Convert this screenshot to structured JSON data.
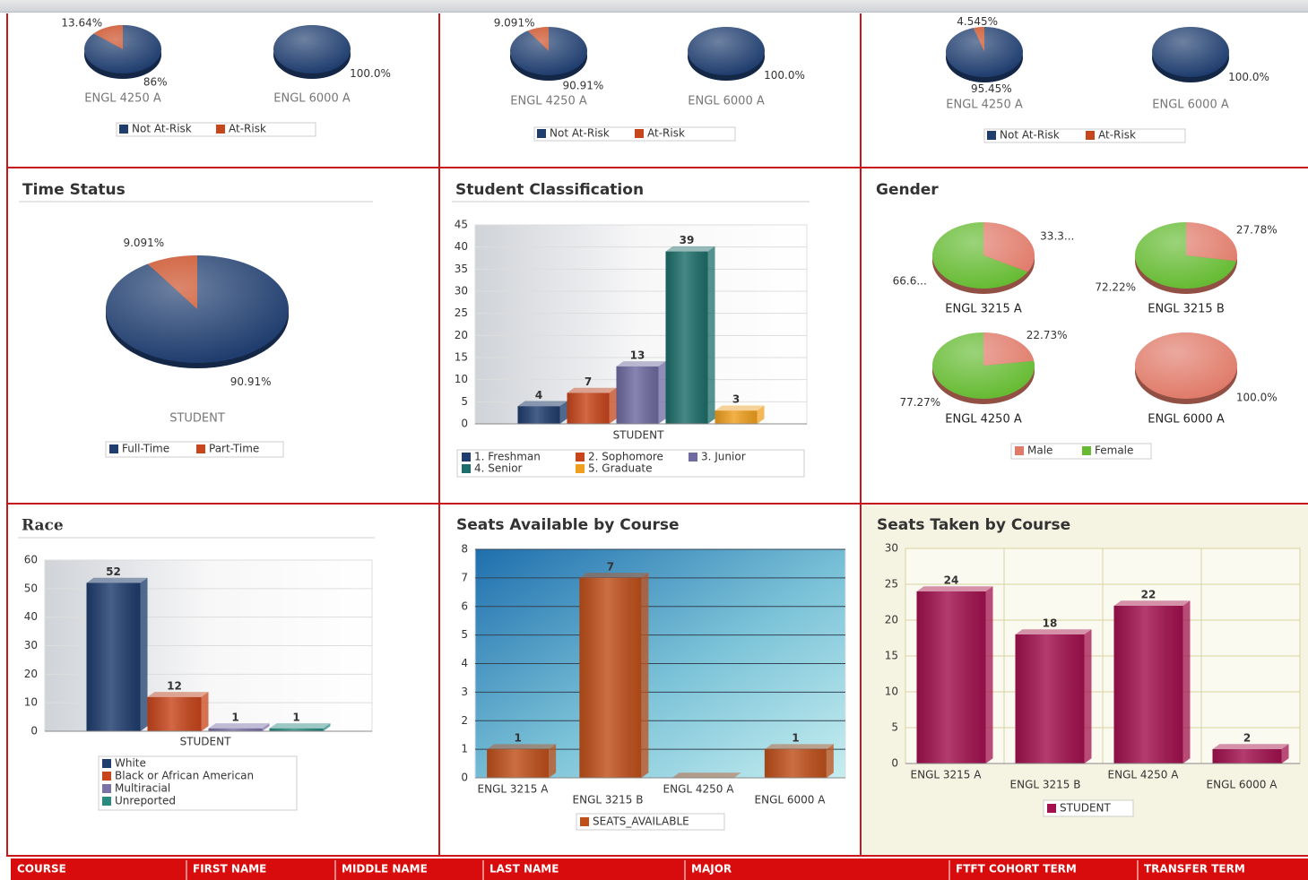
{
  "chart_data": [
    {
      "type": "pie",
      "legend": [
        "Not At-Risk",
        "At-Risk"
      ],
      "colors": [
        "#1f3d6e",
        "#c8461c"
      ],
      "pies": [
        {
          "name": "ENGL 4250 A",
          "values": [
            86.36,
            13.64
          ],
          "value_labels": [
            "86%",
            "13.64%"
          ]
        },
        {
          "name": "ENGL 6000 A",
          "values": [
            100,
            0
          ],
          "value_labels": [
            "100.0%",
            null
          ]
        }
      ]
    },
    {
      "type": "pie",
      "legend": [
        "Not At-Risk",
        "At-Risk"
      ],
      "colors": [
        "#1f3d6e",
        "#c8461c"
      ],
      "pies": [
        {
          "name": "ENGL 4250 A",
          "values": [
            90.91,
            9.091
          ],
          "value_labels": [
            "90.91%",
            "9.091%"
          ]
        },
        {
          "name": "ENGL 6000 A",
          "values": [
            100,
            0
          ],
          "value_labels": [
            "100.0%",
            null
          ]
        }
      ]
    },
    {
      "type": "pie",
      "legend": [
        "Not At-Risk",
        "At-Risk"
      ],
      "colors": [
        "#1f3d6e",
        "#c8461c"
      ],
      "pies": [
        {
          "name": "ENGL 4250 A",
          "values": [
            95.45,
            4.545
          ],
          "value_labels": [
            "95.45%",
            "4.545%"
          ]
        },
        {
          "name": "ENGL 6000 A",
          "values": [
            100,
            0
          ],
          "value_labels": [
            "100.0%",
            null
          ]
        }
      ]
    },
    {
      "type": "pie",
      "title": "Time Status",
      "legend": [
        "Full-Time",
        "Part-Time"
      ],
      "colors": [
        "#1f3d6e",
        "#c8461c"
      ],
      "pies": [
        {
          "name": "STUDENT",
          "values": [
            90.91,
            9.091
          ],
          "value_labels": [
            "90.91%",
            "9.091%"
          ]
        }
      ]
    },
    {
      "type": "bar",
      "title": "Student Classification",
      "categories": [
        "STUDENT"
      ],
      "series": [
        {
          "name": "1. Freshman",
          "color": "#1f3d6e",
          "values": [
            4
          ]
        },
        {
          "name": "2. Sophomore",
          "color": "#c8461c",
          "values": [
            7
          ]
        },
        {
          "name": "3. Junior",
          "color": "#6f6aa0",
          "values": [
            13
          ]
        },
        {
          "name": "4. Senior",
          "color": "#1d6e6a",
          "values": [
            39
          ]
        },
        {
          "name": "5. Graduate",
          "color": "#f0a020",
          "values": [
            3
          ]
        }
      ],
      "ylim": [
        0,
        45
      ],
      "yticks": [
        0,
        5,
        10,
        15,
        20,
        25,
        30,
        35,
        40,
        45
      ],
      "grid": true
    },
    {
      "type": "pie",
      "title": "Gender",
      "legend": [
        "Male",
        "Female"
      ],
      "colors": [
        "#e07b6a",
        "#66bb33"
      ],
      "pies": [
        {
          "name": "ENGL 3215 A",
          "values": [
            33.33,
            66.67
          ],
          "value_labels": [
            "33.3...",
            "66.6..."
          ]
        },
        {
          "name": "ENGL 3215 B",
          "values": [
            27.78,
            72.22
          ],
          "value_labels": [
            "27.78%",
            "72.22%"
          ]
        },
        {
          "name": "ENGL 4250 A",
          "values": [
            22.73,
            77.27
          ],
          "value_labels": [
            "22.73%",
            "77.27%"
          ]
        },
        {
          "name": "ENGL 6000 A",
          "values": [
            100,
            0
          ],
          "value_labels": [
            "100.0%",
            null
          ]
        }
      ]
    },
    {
      "type": "bar",
      "title": "Race",
      "categories": [
        "STUDENT"
      ],
      "series": [
        {
          "name": "White",
          "color": "#1f3d6e",
          "values": [
            52
          ]
        },
        {
          "name": "Black or African American",
          "color": "#c8461c",
          "values": [
            12
          ]
        },
        {
          "name": "Multiracial",
          "color": "#7b72a8",
          "values": [
            1
          ]
        },
        {
          "name": "Unreported",
          "color": "#2a8a80",
          "values": [
            1
          ]
        }
      ],
      "ylim": [
        0,
        60
      ],
      "yticks": [
        0,
        10,
        20,
        30,
        40,
        50,
        60
      ],
      "grid": true
    },
    {
      "type": "bar",
      "title": "Seats Available by Course",
      "categories": [
        "ENGL 3215 A",
        "ENGL 3215 B",
        "ENGL 4250 A",
        "ENGL 6000 A"
      ],
      "series": [
        {
          "name": "SEATS_AVAILABLE",
          "color": "#c0501a",
          "values": [
            1,
            7,
            0,
            1
          ]
        }
      ],
      "ylim": [
        0,
        8
      ],
      "yticks": [
        0,
        1,
        2,
        3,
        4,
        5,
        6,
        7,
        8
      ],
      "grid": true
    },
    {
      "type": "bar",
      "title": "Seats Taken by Course",
      "categories": [
        "ENGL 3215 A",
        "ENGL 3215 B",
        "ENGL 4250 A",
        "ENGL 6000 A"
      ],
      "series": [
        {
          "name": "STUDENT",
          "color": "#a3114f",
          "values": [
            24,
            18,
            22,
            2
          ]
        }
      ],
      "ylim": [
        0,
        30
      ],
      "yticks": [
        0,
        5,
        10,
        15,
        20,
        25,
        30
      ],
      "grid": true
    }
  ],
  "table": {
    "columns": [
      "COURSE",
      "FIRST NAME",
      "MIDDLE NAME",
      "LAST NAME",
      "MAJOR",
      "FTFT COHORT TERM",
      "TRANSFER TERM"
    ]
  }
}
